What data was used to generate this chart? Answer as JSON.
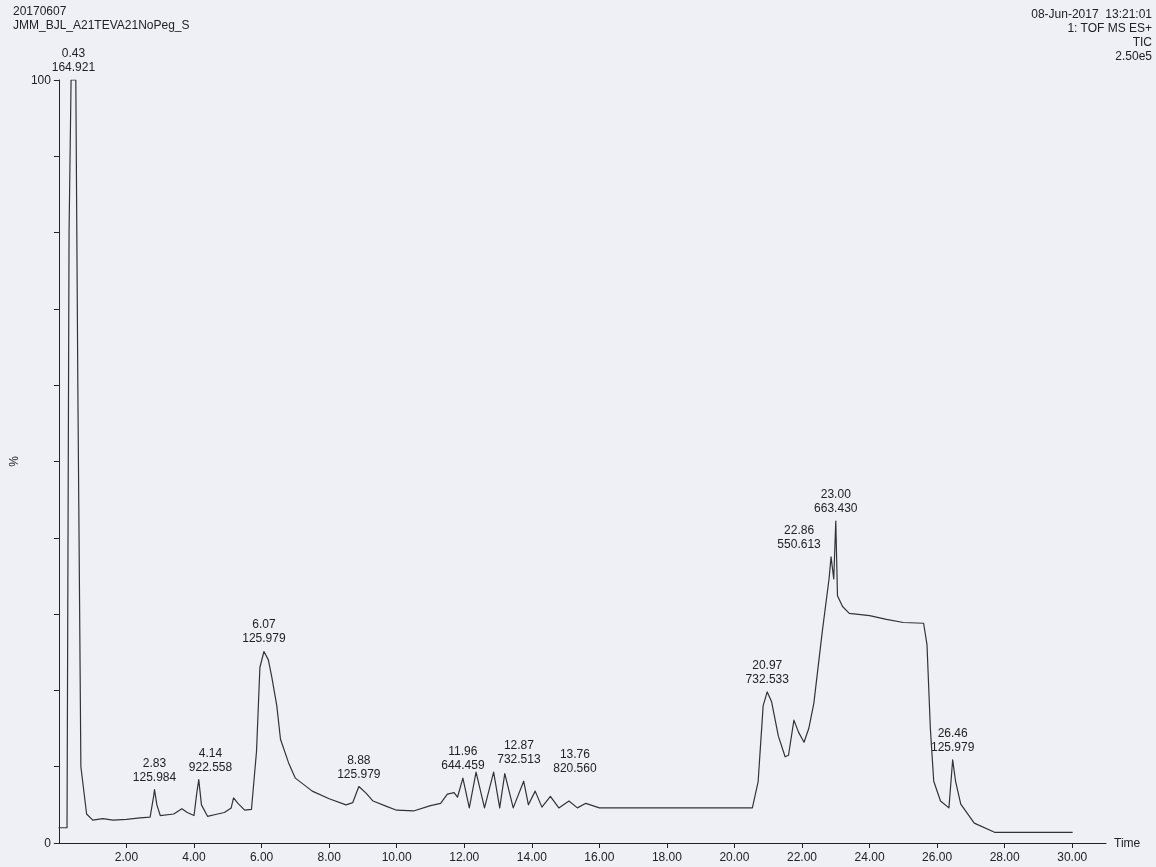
{
  "chart_data": {
    "type": "line",
    "title": "20170607",
    "subtitle": "JMM_BJL_A21TEVA21NoPeg_S",
    "xlabel": "Time",
    "ylabel": "%",
    "annotations": [
      "08-Jun-2017  13:21:01",
      "1: TOF MS ES+",
      "TIC",
      "2.50e5",
      {
        "text": "0.43\n164.921",
        "x": 0.43,
        "y": 100
      },
      {
        "text": "2.83\n125.984",
        "x": 2.83,
        "y": 7
      },
      {
        "text": "4.14\n922.558",
        "x": 4.14,
        "y": 8.3
      },
      {
        "text": "6.07\n125.979",
        "x": 6.07,
        "y": 25.1
      },
      {
        "text": "8.88\n125.979",
        "x": 8.88,
        "y": 7.4
      },
      {
        "text": "11.96\n644.459",
        "x": 11.96,
        "y": 8.5
      },
      {
        "text": "12.87\n732.513",
        "x": 12.87,
        "y": 9.3
      },
      {
        "text": "13.76\n820.560",
        "x": 13.76,
        "y": 8.1
      },
      {
        "text": "20.97\n732.533",
        "x": 20.97,
        "y": 19.8
      },
      {
        "text": "22.86\n550.613",
        "x": 22.86,
        "y": 37.5
      },
      {
        "text": "23.00\n663.430",
        "x": 23.0,
        "y": 42.2
      },
      {
        "text": "26.46\n125.979",
        "x": 26.46,
        "y": 10.9
      }
    ],
    "x": [
      0,
      0.24,
      0.3,
      0.36,
      0.43,
      0.5,
      0.56,
      0.65,
      0.82,
      1.0,
      1.3,
      1.6,
      2.0,
      2.4,
      2.7,
      2.8,
      2.83,
      2.9,
      3.0,
      3.4,
      3.64,
      3.8,
      4.0,
      4.08,
      4.14,
      4.22,
      4.4,
      4.7,
      4.9,
      5.1,
      5.17,
      5.3,
      5.5,
      5.7,
      5.85,
      5.95,
      6.07,
      6.2,
      6.3,
      6.45,
      6.56,
      6.8,
      7.0,
      7.5,
      8.0,
      8.5,
      8.7,
      8.88,
      9.1,
      9.3,
      9.7,
      10.0,
      10.5,
      11.0,
      11.3,
      11.5,
      11.7,
      11.8,
      11.96,
      12.15,
      12.35,
      12.6,
      12.87,
      13.05,
      13.2,
      13.45,
      13.76,
      13.9,
      14.1,
      14.3,
      14.55,
      14.8,
      15.1,
      15.35,
      15.6,
      16.0,
      17.0,
      18.0,
      19.0,
      20.0,
      20.53,
      20.7,
      20.85,
      20.97,
      21.1,
      21.3,
      21.5,
      21.6,
      21.76,
      21.9,
      22.06,
      22.2,
      22.35,
      22.6,
      22.8,
      22.86,
      22.94,
      23.0,
      23.05,
      23.2,
      23.4,
      24.0,
      24.5,
      25.0,
      25.6,
      25.7,
      25.8,
      25.9,
      26.1,
      26.35,
      26.46,
      26.55,
      26.7,
      27.1,
      27.7,
      28.5,
      30.0
    ],
    "values": [
      2.0,
      2.0,
      80,
      100,
      100,
      100,
      60,
      10,
      3.8,
      3.0,
      3.2,
      3.0,
      3.1,
      3.3,
      3.4,
      6.0,
      7.0,
      5.0,
      3.6,
      3.8,
      4.5,
      4.0,
      3.6,
      6.5,
      8.3,
      5.0,
      3.5,
      3.8,
      4.0,
      4.6,
      5.9,
      5.2,
      4.3,
      4.4,
      12,
      23,
      25.1,
      24,
      21.8,
      18,
      13.6,
      10.5,
      8.5,
      6.8,
      5.8,
      5.0,
      5.3,
      7.4,
      6.5,
      5.5,
      4.8,
      4.3,
      4.2,
      4.9,
      5.2,
      6.4,
      6.6,
      6.0,
      8.5,
      4.6,
      9.3,
      4.6,
      9.3,
      4.6,
      9.1,
      4.6,
      8.1,
      5.0,
      6.8,
      4.7,
      6.1,
      4.6,
      5.5,
      4.6,
      5.2,
      4.6,
      4.6,
      4.6,
      4.6,
      4.6,
      4.6,
      8,
      18,
      19.8,
      18.5,
      14,
      11.3,
      11.5,
      16.1,
      14.5,
      13.2,
      15,
      18.3,
      27.7,
      34.6,
      37.5,
      34.6,
      42.2,
      32.4,
      31,
      30.1,
      29.8,
      29.3,
      28.9,
      28.8,
      26,
      15,
      8.1,
      5.5,
      4.6,
      10.9,
      8,
      5.1,
      2.6,
      1.4,
      1.4,
      1.4
    ],
    "color": "#333333",
    "marker": "none",
    "line_style": "solid",
    "grid": false,
    "xlim": [
      0,
      31
    ],
    "xticks": [
      {
        "value": 2,
        "label": "2.00"
      },
      {
        "value": 4,
        "label": "4.00"
      },
      {
        "value": 6,
        "label": "6.00"
      },
      {
        "value": 8,
        "label": "8.00"
      },
      {
        "value": 10,
        "label": "10.00"
      },
      {
        "value": 12,
        "label": "12.00"
      },
      {
        "value": 14,
        "label": "14.00"
      },
      {
        "value": 16,
        "label": "16.00"
      },
      {
        "value": 18,
        "label": "18.00"
      },
      {
        "value": 20,
        "label": "20.00"
      },
      {
        "value": 22,
        "label": "22.00"
      },
      {
        "value": 24,
        "label": "24.00"
      },
      {
        "value": 26,
        "label": "26.00"
      },
      {
        "value": 28,
        "label": "28.00"
      },
      {
        "value": 30,
        "label": "30.00"
      }
    ],
    "ylim": [
      0,
      100
    ],
    "yticks": [
      0,
      {
        "value": 10,
        "label": null
      },
      {
        "value": 20,
        "label": null
      },
      {
        "value": 30,
        "label": null
      },
      {
        "value": 40,
        "label": null
      },
      {
        "value": 50,
        "label": null
      },
      {
        "value": 60,
        "label": null
      },
      {
        "value": 70,
        "label": null
      },
      {
        "value": 80,
        "label": null
      },
      {
        "value": 90,
        "label": null
      },
      100
    ]
  }
}
